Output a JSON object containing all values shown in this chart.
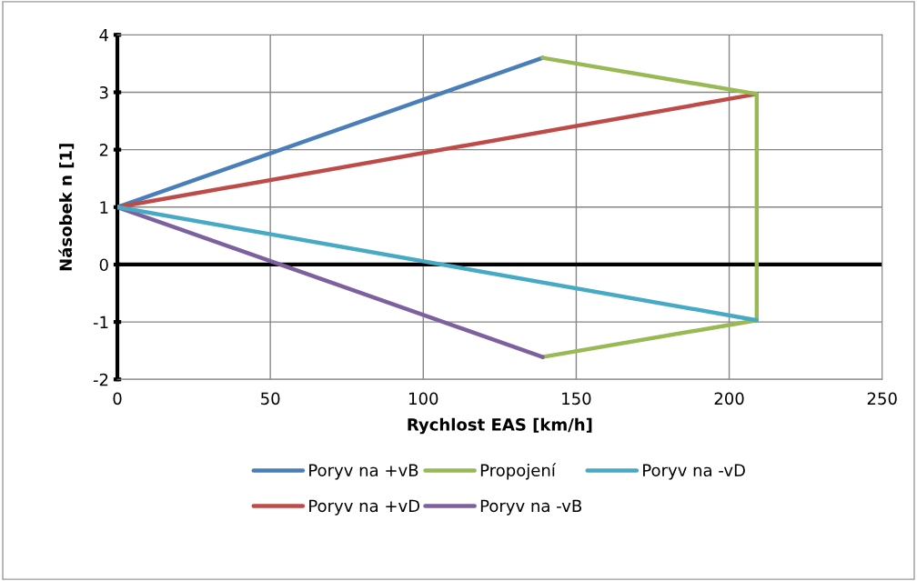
{
  "chart_data": {
    "type": "line",
    "xlabel": "Rychlost EAS [km/h]",
    "ylabel": "Násobek n [1]",
    "xlim": [
      0,
      250
    ],
    "xticks": [
      0,
      50,
      100,
      150,
      200,
      250
    ],
    "ylim": [
      -2,
      4
    ],
    "yticks": [
      -2,
      -1,
      0,
      1,
      2,
      3,
      4
    ],
    "grid": true,
    "legend": "bottom",
    "marker": "none",
    "line_style": "solid",
    "series": [
      {
        "name": "Poryv na +vB",
        "color": "#4a7ebb",
        "x": [
          0,
          139
        ],
        "values": [
          1,
          3.6
        ]
      },
      {
        "name": "Poryv na +vD",
        "color": "#be4b48",
        "x": [
          0,
          209
        ],
        "values": [
          1,
          2.97
        ]
      },
      {
        "name": "Propojení",
        "color": "#98b954",
        "x": [
          139,
          209,
          209,
          139
        ],
        "values": [
          3.6,
          2.97,
          -0.97,
          -1.61
        ]
      },
      {
        "name": "Poryv na -vB",
        "color": "#7d60a0",
        "x": [
          0,
          139
        ],
        "values": [
          1,
          -1.61
        ]
      },
      {
        "name": "Poryv na -vD",
        "color": "#46aac5",
        "x": [
          0,
          209
        ],
        "values": [
          1,
          -0.97
        ]
      }
    ]
  }
}
